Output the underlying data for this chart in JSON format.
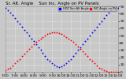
{
  "title": "Sr. Alt. Angle    Sun Inc. Angle on PV Panels",
  "background_color": "#c8c8c8",
  "plot_bg_color": "#c8c8c8",
  "grid_color": "#ffffff",
  "blue_x": [
    0,
    1,
    2,
    3,
    4,
    5,
    6,
    7,
    8,
    9,
    10,
    11,
    12,
    13,
    14,
    15,
    16,
    17,
    18,
    19,
    20,
    21,
    22,
    23,
    24,
    25,
    26,
    27,
    28,
    29,
    30,
    31,
    32,
    33,
    34,
    35,
    36,
    37,
    38,
    39,
    40,
    41,
    42,
    43,
    44,
    45,
    46,
    47,
    48
  ],
  "blue_y": [
    88,
    85,
    82,
    78,
    74,
    70,
    66,
    62,
    58,
    54,
    50,
    46,
    42,
    38,
    34,
    30,
    26,
    22,
    18,
    15,
    12,
    10,
    8,
    7,
    8,
    10,
    12,
    15,
    18,
    22,
    26,
    30,
    34,
    38,
    42,
    46,
    50,
    54,
    58,
    62,
    66,
    70,
    74,
    78,
    82,
    85,
    87,
    88,
    88
  ],
  "red_x": [
    0,
    1,
    2,
    3,
    4,
    5,
    6,
    7,
    8,
    9,
    10,
    11,
    12,
    13,
    14,
    15,
    16,
    17,
    18,
    19,
    20,
    21,
    22,
    23,
    24,
    25,
    26,
    27,
    28,
    29,
    30,
    31,
    32,
    33,
    34,
    35,
    36,
    37,
    38,
    39,
    40,
    41,
    42,
    43,
    44,
    45,
    46,
    47,
    48
  ],
  "red_y": [
    2,
    4,
    6,
    9,
    12,
    15,
    18,
    22,
    25,
    28,
    32,
    35,
    38,
    41,
    44,
    46,
    48,
    50,
    52,
    53,
    54,
    54,
    54,
    53,
    52,
    50,
    48,
    46,
    44,
    41,
    38,
    35,
    32,
    28,
    25,
    22,
    18,
    15,
    12,
    9,
    6,
    4,
    2,
    1,
    0,
    0,
    0,
    0,
    0
  ],
  "ylim": [
    0,
    90
  ],
  "ytick_vals": [
    0,
    10,
    20,
    30,
    40,
    50,
    60,
    70,
    80,
    90
  ],
  "xlim": [
    0,
    48
  ],
  "xtick_positions": [
    0,
    4,
    8,
    12,
    16,
    20,
    24,
    28,
    32,
    36,
    40,
    44,
    48
  ],
  "xtick_labels": [
    "7:00",
    "7:30",
    "8:00",
    "8:30",
    "9:00",
    "9:30",
    "10:00",
    "10:30",
    "11:00",
    "11:30",
    "12:00",
    "12:30",
    "13:00"
  ],
  "title_fontsize": 4.0,
  "tick_fontsize": 3.2,
  "dot_size": 1.8,
  "legend_labels": [
    "HOZ Sun Alt Angle",
    "INC Angle on PV"
  ],
  "legend_colors": [
    "#0000ff",
    "#ff0000"
  ]
}
